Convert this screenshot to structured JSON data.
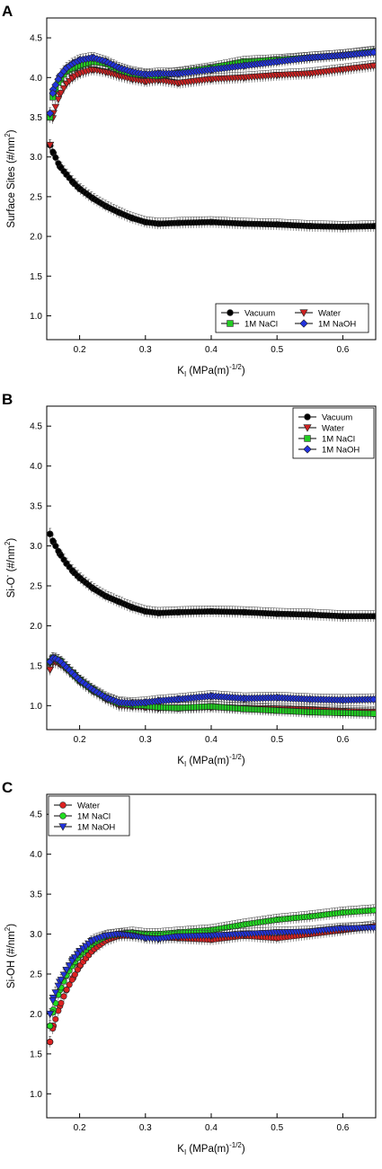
{
  "chart_data": [
    {
      "panel_label": "A",
      "type": "scatter",
      "ylabel_main": "Surface Sites (#/nm",
      "ylabel_sup": "2",
      "ylabel_end": ")",
      "xlabel_main": "K",
      "xlabel_sub": "I",
      "xlabel_mid": " (MPa(m)",
      "xlabel_sup": "-1/2",
      "xlabel_end": ")",
      "xlim": [
        0.15,
        0.65
      ],
      "ylim": [
        0.7,
        4.75
      ],
      "xticks": [
        0.2,
        0.3,
        0.4,
        0.5,
        0.6
      ],
      "xtick_labels": [
        "0.2",
        "0.3",
        "0.4",
        "0.5",
        "0.6"
      ],
      "yticks": [
        1.0,
        1.5,
        2.0,
        2.5,
        3.0,
        3.5,
        4.0,
        4.5
      ],
      "ytick_labels": [
        "1.0",
        "1.5",
        "2.0",
        "2.5",
        "3.0",
        "3.5",
        "4.0",
        "4.5"
      ],
      "legend_position": "bottom-right",
      "legend_columns": 2,
      "series": [
        {
          "name": "Vacuum",
          "marker": "circle",
          "color": "#000000",
          "x": [
            0.155,
            0.16,
            0.17,
            0.18,
            0.19,
            0.2,
            0.22,
            0.24,
            0.26,
            0.28,
            0.3,
            0.32,
            0.35,
            0.4,
            0.45,
            0.5,
            0.55,
            0.6,
            0.65
          ],
          "y": [
            3.15,
            3.05,
            2.88,
            2.78,
            2.68,
            2.6,
            2.48,
            2.38,
            2.3,
            2.23,
            2.18,
            2.16,
            2.17,
            2.18,
            2.16,
            2.15,
            2.13,
            2.12,
            2.13
          ]
        },
        {
          "name": "Water",
          "marker": "triangle-down",
          "color": "#cc2222",
          "x": [
            0.155,
            0.16,
            0.17,
            0.18,
            0.19,
            0.2,
            0.22,
            0.24,
            0.26,
            0.28,
            0.3,
            0.32,
            0.35,
            0.4,
            0.45,
            0.5,
            0.55,
            0.6,
            0.65
          ],
          "y": [
            3.15,
            3.55,
            3.78,
            3.92,
            4.0,
            4.05,
            4.1,
            4.07,
            4.02,
            3.98,
            3.95,
            3.97,
            3.93,
            3.98,
            4.0,
            4.03,
            4.05,
            4.1,
            4.15
          ]
        },
        {
          "name": "1M NaCl",
          "marker": "square",
          "color": "#22cc22",
          "x": [
            0.155,
            0.16,
            0.17,
            0.18,
            0.19,
            0.2,
            0.22,
            0.24,
            0.26,
            0.28,
            0.3,
            0.32,
            0.35,
            0.4,
            0.45,
            0.5,
            0.55,
            0.6,
            0.65
          ],
          "y": [
            3.5,
            3.8,
            3.98,
            4.08,
            4.12,
            4.15,
            4.2,
            4.18,
            4.1,
            4.05,
            4.03,
            4.02,
            4.06,
            4.12,
            4.2,
            4.22,
            4.25,
            4.28,
            4.33
          ]
        },
        {
          "name": "1M NaOH",
          "marker": "diamond",
          "color": "#2233dd",
          "x": [
            0.155,
            0.16,
            0.17,
            0.18,
            0.19,
            0.2,
            0.22,
            0.24,
            0.26,
            0.28,
            0.3,
            0.32,
            0.35,
            0.4,
            0.45,
            0.5,
            0.55,
            0.6,
            0.65
          ],
          "y": [
            3.55,
            3.85,
            4.02,
            4.12,
            4.18,
            4.22,
            4.25,
            4.2,
            4.12,
            4.07,
            4.04,
            4.05,
            4.05,
            4.1,
            4.15,
            4.2,
            4.25,
            4.28,
            4.32
          ]
        }
      ]
    },
    {
      "panel_label": "B",
      "type": "scatter",
      "ylabel_main": "Si-O",
      "ylabel_charge": "-",
      "ylabel_rest": " (#/nm",
      "ylabel_sup": "2",
      "ylabel_end": ")",
      "xlabel_main": "K",
      "xlabel_sub": "I",
      "xlabel_mid": " (MPa(m)",
      "xlabel_sup": "-1/2",
      "xlabel_end": ")",
      "xlim": [
        0.15,
        0.65
      ],
      "ylim": [
        0.7,
        4.75
      ],
      "xticks": [
        0.2,
        0.3,
        0.4,
        0.5,
        0.6
      ],
      "xtick_labels": [
        "0.2",
        "0.3",
        "0.4",
        "0.5",
        "0.6"
      ],
      "yticks": [
        1.0,
        1.5,
        2.0,
        2.5,
        3.0,
        3.5,
        4.0,
        4.5
      ],
      "ytick_labels": [
        "1.0",
        "1.5",
        "2.0",
        "2.5",
        "3.0",
        "3.5",
        "4.0",
        "4.5"
      ],
      "legend_position": "top-right",
      "legend_columns": 1,
      "series": [
        {
          "name": "Vacuum",
          "marker": "circle",
          "color": "#000000",
          "x": [
            0.155,
            0.16,
            0.17,
            0.18,
            0.19,
            0.2,
            0.22,
            0.24,
            0.26,
            0.28,
            0.3,
            0.32,
            0.35,
            0.4,
            0.45,
            0.5,
            0.55,
            0.6,
            0.65
          ],
          "y": [
            3.15,
            3.05,
            2.9,
            2.78,
            2.68,
            2.6,
            2.47,
            2.37,
            2.3,
            2.23,
            2.18,
            2.16,
            2.17,
            2.18,
            2.17,
            2.15,
            2.14,
            2.12,
            2.12
          ]
        },
        {
          "name": "Water",
          "marker": "triangle-down",
          "color": "#cc2222",
          "x": [
            0.155,
            0.16,
            0.17,
            0.18,
            0.19,
            0.2,
            0.22,
            0.24,
            0.26,
            0.28,
            0.3,
            0.32,
            0.35,
            0.4,
            0.45,
            0.5,
            0.55,
            0.6,
            0.65
          ],
          "y": [
            1.45,
            1.55,
            1.52,
            1.45,
            1.38,
            1.3,
            1.18,
            1.08,
            1.0,
            0.99,
            0.98,
            0.97,
            0.97,
            0.98,
            0.97,
            0.96,
            0.95,
            0.93,
            0.92
          ]
        },
        {
          "name": "1M NaCl",
          "marker": "square",
          "color": "#22cc22",
          "x": [
            0.155,
            0.16,
            0.17,
            0.18,
            0.19,
            0.2,
            0.22,
            0.24,
            0.26,
            0.28,
            0.3,
            0.32,
            0.35,
            0.4,
            0.45,
            0.5,
            0.55,
            0.6,
            0.65
          ],
          "y": [
            1.55,
            1.6,
            1.56,
            1.48,
            1.4,
            1.32,
            1.2,
            1.1,
            1.03,
            1.01,
            1.0,
            0.98,
            0.97,
            0.99,
            0.96,
            0.94,
            0.92,
            0.91,
            0.9
          ]
        },
        {
          "name": "1M NaOH",
          "marker": "diamond",
          "color": "#2233dd",
          "x": [
            0.155,
            0.16,
            0.17,
            0.18,
            0.19,
            0.2,
            0.22,
            0.24,
            0.26,
            0.28,
            0.3,
            0.32,
            0.35,
            0.4,
            0.45,
            0.5,
            0.55,
            0.6,
            0.65
          ],
          "y": [
            1.55,
            1.6,
            1.56,
            1.48,
            1.4,
            1.32,
            1.2,
            1.1,
            1.04,
            1.03,
            1.04,
            1.06,
            1.08,
            1.12,
            1.09,
            1.1,
            1.08,
            1.07,
            1.08
          ]
        }
      ]
    },
    {
      "panel_label": "C",
      "type": "scatter",
      "ylabel_main": "Si-OH (#/nm",
      "ylabel_sup": "2",
      "ylabel_end": ")",
      "xlabel_main": "K",
      "xlabel_sub": "I",
      "xlabel_mid": " (MPa(m)",
      "xlabel_sup": "-1/2",
      "xlabel_end": ")",
      "xlim": [
        0.15,
        0.65
      ],
      "ylim": [
        0.7,
        4.75
      ],
      "xticks": [
        0.2,
        0.3,
        0.4,
        0.5,
        0.6
      ],
      "xtick_labels": [
        "0.2",
        "0.3",
        "0.4",
        "0.5",
        "0.6"
      ],
      "yticks": [
        1.0,
        1.5,
        2.0,
        2.5,
        3.0,
        3.5,
        4.0,
        4.5
      ],
      "ytick_labels": [
        "1.0",
        "1.5",
        "2.0",
        "2.5",
        "3.0",
        "3.5",
        "4.0",
        "4.5"
      ],
      "legend_position": "top-left",
      "legend_columns": 1,
      "series": [
        {
          "name": "Water",
          "marker": "circle",
          "color": "#dd2222",
          "x": [
            0.155,
            0.16,
            0.17,
            0.18,
            0.19,
            0.2,
            0.22,
            0.24,
            0.26,
            0.28,
            0.3,
            0.32,
            0.35,
            0.4,
            0.45,
            0.5,
            0.55,
            0.6,
            0.65
          ],
          "y": [
            1.65,
            1.85,
            2.1,
            2.3,
            2.45,
            2.6,
            2.8,
            2.92,
            2.98,
            2.98,
            2.97,
            2.96,
            2.95,
            2.93,
            2.98,
            2.95,
            3.0,
            3.05,
            3.1
          ]
        },
        {
          "name": "1M NaCl",
          "marker": "circle",
          "color": "#22dd22",
          "x": [
            0.155,
            0.16,
            0.17,
            0.18,
            0.19,
            0.2,
            0.22,
            0.24,
            0.26,
            0.28,
            0.3,
            0.32,
            0.35,
            0.4,
            0.45,
            0.5,
            0.55,
            0.6,
            0.65
          ],
          "y": [
            1.85,
            2.05,
            2.3,
            2.48,
            2.62,
            2.73,
            2.88,
            2.97,
            3.0,
            3.02,
            3.0,
            3.0,
            3.02,
            3.05,
            3.12,
            3.18,
            3.22,
            3.27,
            3.3
          ]
        },
        {
          "name": "1M NaOH",
          "marker": "triangle-down",
          "color": "#2233dd",
          "x": [
            0.155,
            0.16,
            0.17,
            0.18,
            0.19,
            0.2,
            0.22,
            0.24,
            0.26,
            0.28,
            0.3,
            0.32,
            0.35,
            0.4,
            0.45,
            0.5,
            0.55,
            0.6,
            0.65
          ],
          "y": [
            2.0,
            2.2,
            2.4,
            2.55,
            2.68,
            2.78,
            2.92,
            2.98,
            3.0,
            2.98,
            2.95,
            2.94,
            2.97,
            2.98,
            3.0,
            3.02,
            3.03,
            3.07,
            3.08
          ]
        }
      ]
    }
  ]
}
